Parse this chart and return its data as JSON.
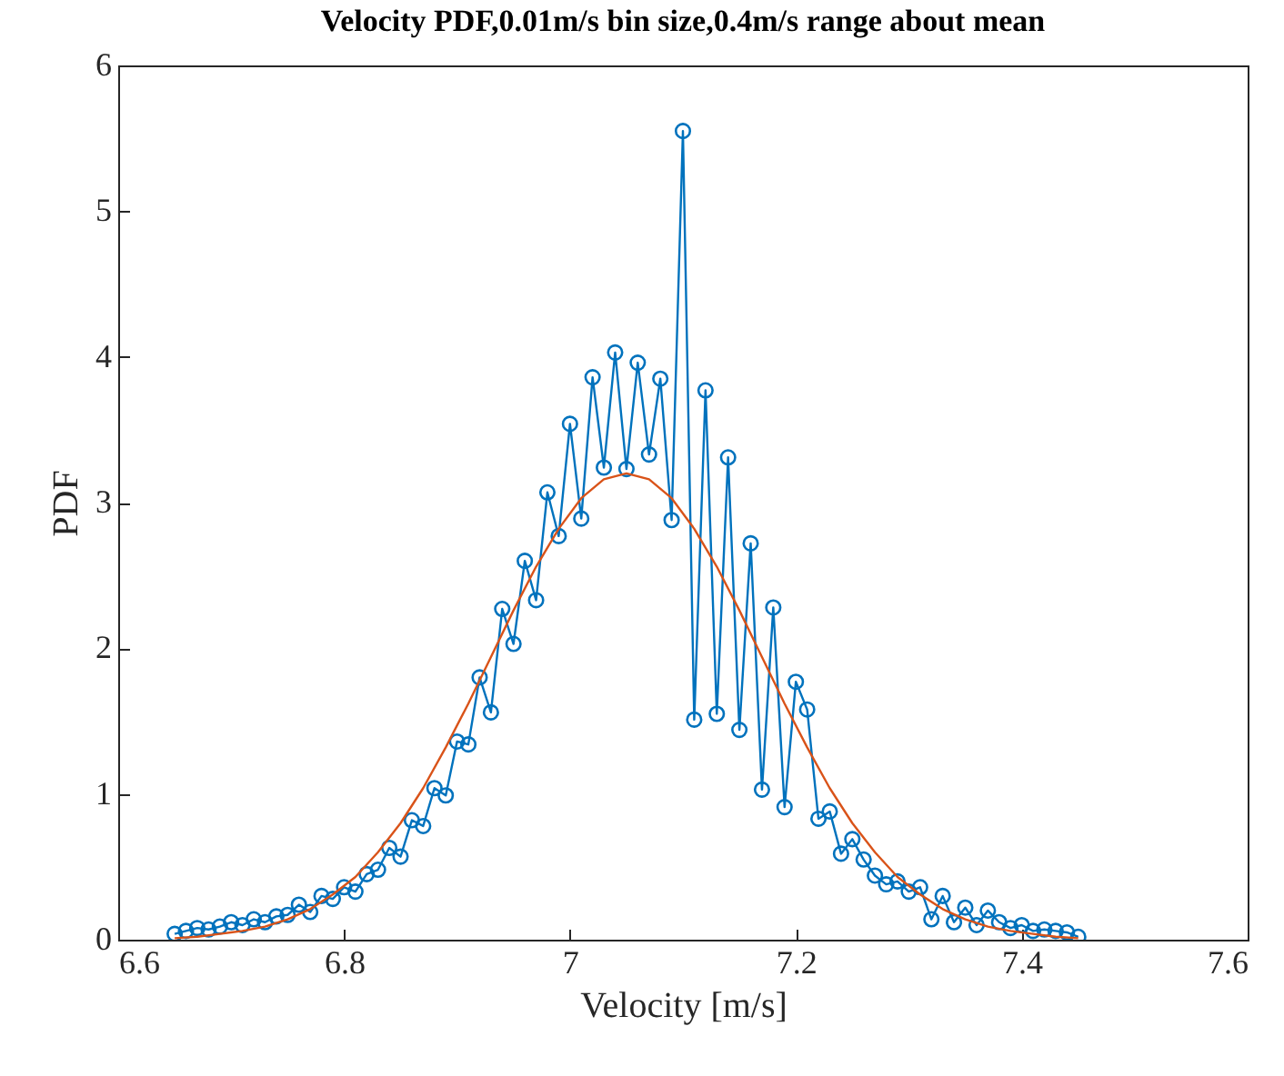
{
  "chart_data": {
    "type": "line",
    "title": "Velocity PDF,0.01m/s bin size,0.4m/s range about mean",
    "xlabel": "Velocity [m/s]",
    "ylabel": "PDF",
    "xlim": [
      6.6,
      7.6
    ],
    "xticks": [
      6.6,
      6.8,
      7,
      7.2,
      7.4,
      7.6
    ],
    "ylim": [
      0,
      6
    ],
    "yticks": [
      0,
      1,
      2,
      3,
      4,
      5,
      6
    ],
    "marker": "circle",
    "grid": false,
    "x": [
      6.65,
      6.66,
      6.67,
      6.68,
      6.69,
      6.7,
      6.71,
      6.72,
      6.73,
      6.74,
      6.75,
      6.76,
      6.77,
      6.78,
      6.79,
      6.8,
      6.81,
      6.82,
      6.83,
      6.84,
      6.85,
      6.86,
      6.87,
      6.88,
      6.89,
      6.9,
      6.91,
      6.92,
      6.93,
      6.94,
      6.95,
      6.96,
      6.97,
      6.98,
      6.99,
      7,
      7.01,
      7.02,
      7.03,
      7.04,
      7.05,
      7.06,
      7.07,
      7.08,
      7.09,
      7.1,
      7.11,
      7.12,
      7.13,
      7.14,
      7.15,
      7.16,
      7.17,
      7.18,
      7.19,
      7.2,
      7.21,
      7.22,
      7.23,
      7.24,
      7.25,
      7.26,
      7.27,
      7.28,
      7.29,
      7.3,
      7.31,
      7.32,
      7.33,
      7.34,
      7.35,
      7.36,
      7.37,
      7.38,
      7.39,
      7.4,
      7.41,
      7.42,
      7.43,
      7.44,
      7.45
    ],
    "series": [
      {
        "color": "#0072bd",
        "values": [
          0.04,
          0.06,
          0.08,
          0.07,
          0.09,
          0.12,
          0.1,
          0.14,
          0.12,
          0.16,
          0.17,
          0.24,
          0.19,
          0.3,
          0.28,
          0.36,
          0.33,
          0.45,
          0.48,
          0.63,
          0.57,
          0.82,
          0.78,
          1.04,
          0.99,
          1.36,
          1.34,
          1.8,
          1.56,
          2.27,
          2.03,
          2.6,
          2.33,
          3.07,
          2.77,
          3.54,
          2.89,
          3.86,
          3.24,
          4.03,
          3.23,
          3.96,
          3.33,
          3.85,
          2.88,
          5.55,
          1.51,
          3.77,
          1.55,
          3.31,
          1.44,
          2.72,
          1.03,
          2.28,
          0.91,
          1.77,
          1.58,
          0.83,
          0.88,
          0.59,
          0.69,
          0.55,
          0.44,
          0.38,
          0.4,
          0.33,
          0.36,
          0.14,
          0.3,
          0.12,
          0.22,
          0.1,
          0.2,
          0.12,
          0.08,
          0.1,
          0.06,
          0.07,
          0.06,
          0.05,
          0.02
        ]
      },
      {
        "color": "#d95319",
        "marker": "none",
        "x": [
          6.65,
          6.67,
          6.69,
          6.71,
          6.73,
          6.75,
          6.77,
          6.79,
          6.81,
          6.83,
          6.85,
          6.87,
          6.89,
          6.91,
          6.93,
          6.95,
          6.97,
          6.99,
          7.01,
          7.03,
          7.05,
          7.07,
          7.09,
          7.11,
          7.13,
          7.15,
          7.17,
          7.19,
          7.21,
          7.23,
          7.25,
          7.27,
          7.29,
          7.31,
          7.33,
          7.35,
          7.37,
          7.39,
          7.41,
          7.43,
          7.45
        ],
        "values": [
          0.01,
          0.02,
          0.04,
          0.06,
          0.09,
          0.14,
          0.21,
          0.31,
          0.43,
          0.6,
          0.8,
          1.04,
          1.32,
          1.62,
          1.94,
          2.26,
          2.56,
          2.82,
          3.03,
          3.16,
          3.2,
          3.16,
          3.03,
          2.82,
          2.56,
          2.26,
          1.94,
          1.62,
          1.32,
          1.04,
          0.8,
          0.6,
          0.43,
          0.31,
          0.21,
          0.14,
          0.09,
          0.06,
          0.04,
          0.02,
          0.01
        ]
      }
    ]
  }
}
